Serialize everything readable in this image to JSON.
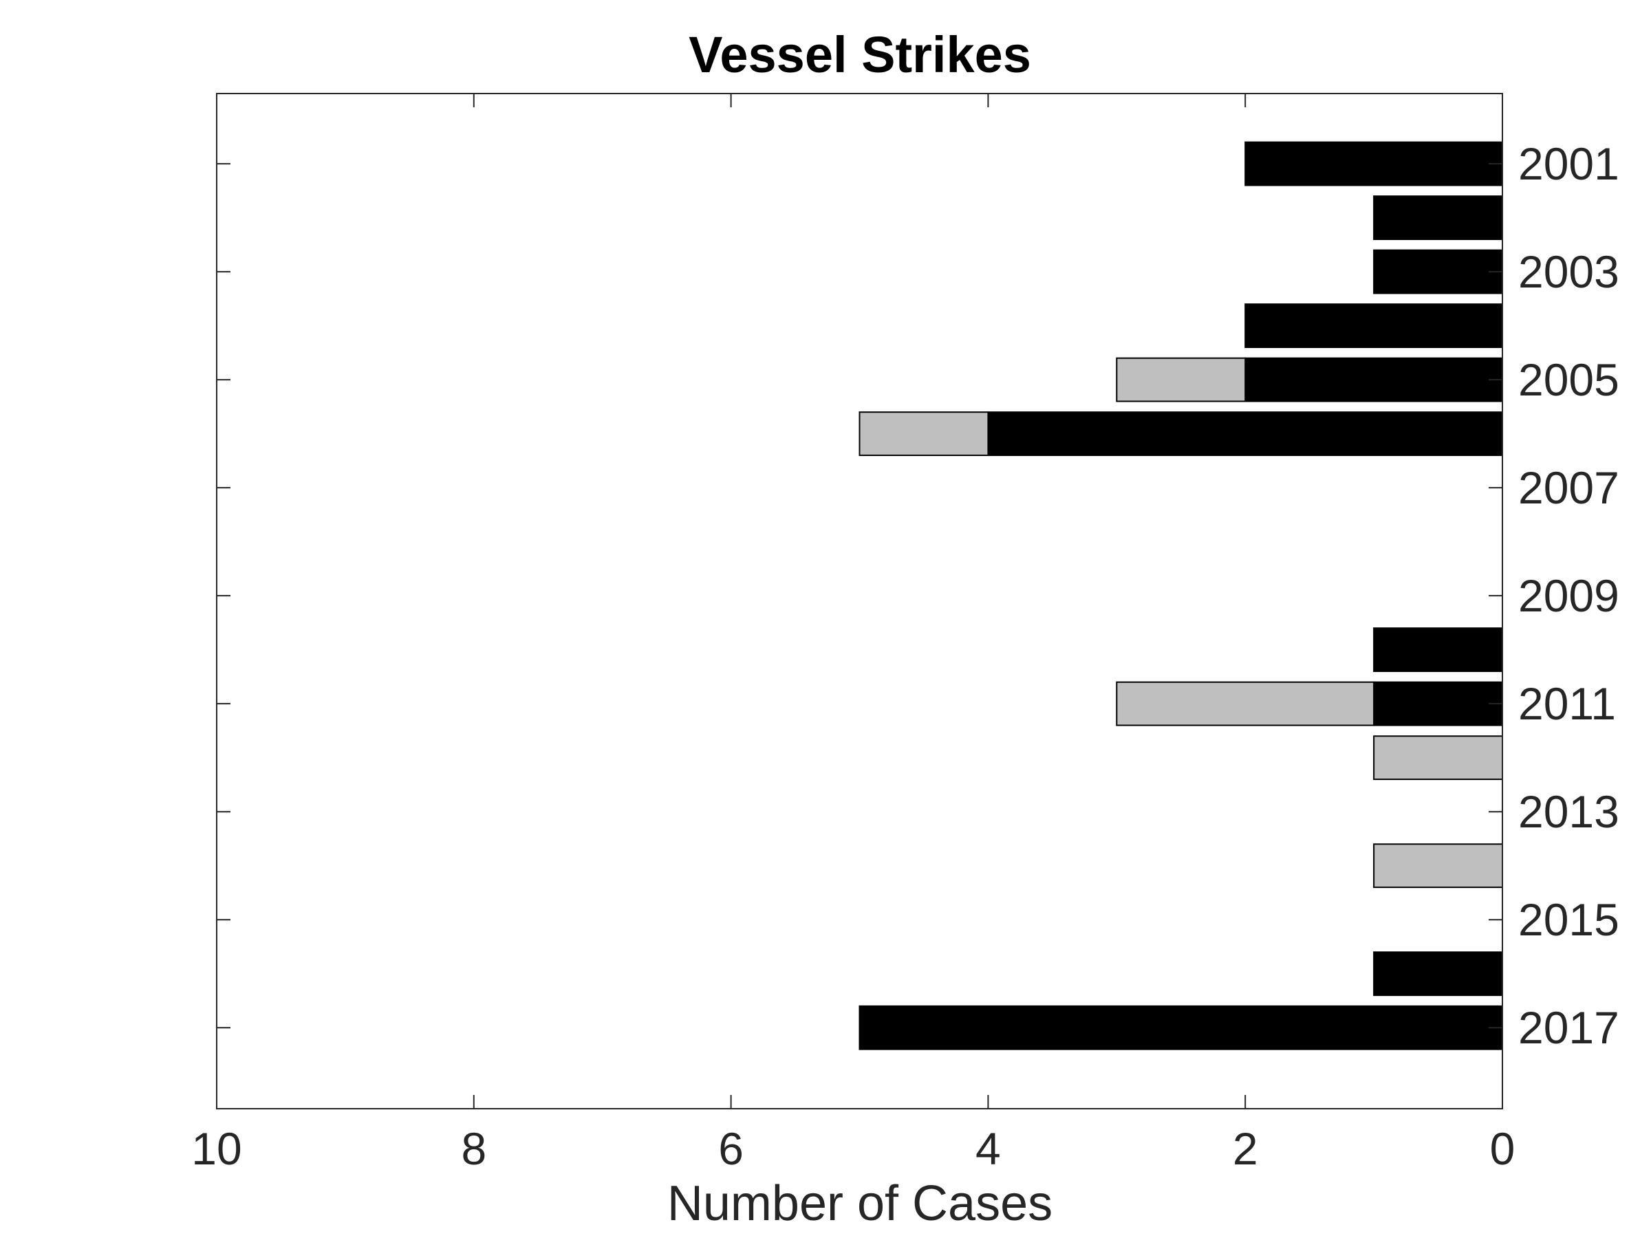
{
  "chart_data": {
    "type": "bar",
    "orientation": "horizontal",
    "stacked": true,
    "x_direction": "reversed",
    "y_axis_location": "right",
    "title": "Vessel Strikes",
    "xlabel": "Number of Cases",
    "ylabel": "",
    "xlim": [
      0,
      10
    ],
    "ylim": [
      1999.7,
      2018.5
    ],
    "x_ticks": [
      0,
      2,
      4,
      6,
      8,
      10
    ],
    "y_ticks": [
      2001,
      2003,
      2005,
      2007,
      2009,
      2011,
      2013,
      2015,
      2017
    ],
    "grid": false,
    "legend": "none",
    "categories": [
      2000,
      2001,
      2002,
      2003,
      2004,
      2005,
      2006,
      2007,
      2008,
      2009,
      2010,
      2011,
      2012,
      2013,
      2014,
      2015,
      2016,
      2017
    ],
    "series": [
      {
        "color": "#000000",
        "values": [
          0,
          2,
          1,
          1,
          2,
          2,
          4,
          0,
          0,
          0,
          1,
          1,
          0,
          0,
          0,
          0,
          1,
          5
        ]
      },
      {
        "color": "#bfbfbf",
        "values": [
          0,
          0,
          0,
          0,
          0,
          1,
          1,
          0,
          0,
          0,
          0,
          2,
          1,
          0,
          1,
          0,
          0,
          0
        ]
      }
    ]
  }
}
